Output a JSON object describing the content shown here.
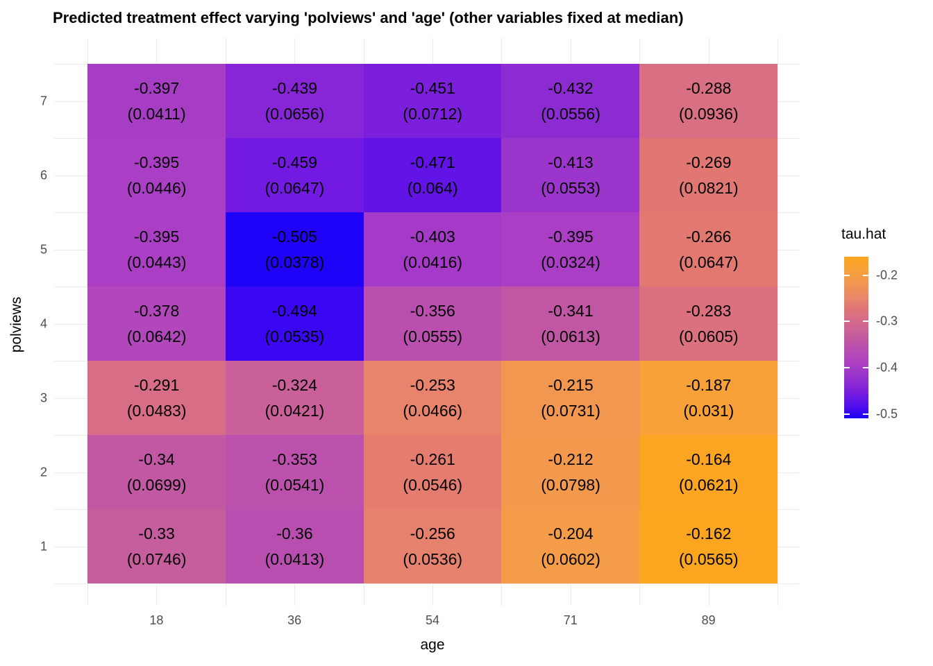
{
  "title": "Predicted treatment effect varying 'polviews' and 'age' (other variables fixed at median)",
  "chart_data": {
    "type": "heatmap",
    "title": "Predicted treatment effect varying 'polviews' and 'age' (other variables fixed at median)",
    "xlabel": "age",
    "ylabel": "polviews",
    "x_ticks": [
      "18",
      "36",
      "54",
      "71",
      "89"
    ],
    "y_ticks": [
      "7",
      "6",
      "5",
      "4",
      "3",
      "2",
      "1"
    ],
    "row_order_note": "rows listed top-to-bottom: polviews 7 down to 1; columns left-to-right: age 18,36,54,71,89",
    "values": [
      [
        -0.397,
        -0.439,
        -0.451,
        -0.432,
        -0.288
      ],
      [
        -0.395,
        -0.459,
        -0.471,
        -0.413,
        -0.269
      ],
      [
        -0.395,
        -0.505,
        -0.403,
        -0.395,
        -0.266
      ],
      [
        -0.378,
        -0.494,
        -0.356,
        -0.341,
        -0.283
      ],
      [
        -0.291,
        -0.324,
        -0.253,
        -0.215,
        -0.187
      ],
      [
        -0.34,
        -0.353,
        -0.261,
        -0.212,
        -0.164
      ],
      [
        -0.33,
        -0.36,
        -0.256,
        -0.204,
        -0.162
      ]
    ],
    "se_labels": [
      [
        "(0.0411)",
        "(0.0656)",
        "(0.0712)",
        "(0.0556)",
        "(0.0936)"
      ],
      [
        "(0.0446)",
        "(0.0647)",
        "(0.064)",
        "(0.0553)",
        "(0.0821)"
      ],
      [
        "(0.0443)",
        "(0.0378)",
        "(0.0416)",
        "(0.0324)",
        "(0.0647)"
      ],
      [
        "(0.0642)",
        "(0.0535)",
        "(0.0555)",
        "(0.0613)",
        "(0.0605)"
      ],
      [
        "(0.0483)",
        "(0.0421)",
        "(0.0466)",
        "(0.0731)",
        "(0.031)"
      ],
      [
        "(0.0699)",
        "(0.0541)",
        "(0.0546)",
        "(0.0798)",
        "(0.0621)"
      ],
      [
        "(0.0746)",
        "(0.0413)",
        "(0.0536)",
        "(0.0602)",
        "(0.0565)"
      ]
    ],
    "legend": {
      "title": "tau.hat",
      "tick_values": [
        -0.2,
        -0.3,
        -0.4,
        -0.5
      ],
      "tick_labels": [
        "-0.2",
        "-0.3",
        "-0.4",
        "-0.5"
      ],
      "bar_domain_min": -0.509,
      "bar_domain_max": -0.16
    },
    "colormap_stops": [
      [
        -0.509,
        "#1500fb"
      ],
      [
        -0.49,
        "#4309ef"
      ],
      [
        -0.47,
        "#6415e6"
      ],
      [
        -0.45,
        "#7d1fdd"
      ],
      [
        -0.43,
        "#8f2cd2"
      ],
      [
        -0.41,
        "#9e36ca"
      ],
      [
        -0.39,
        "#ae41c2"
      ],
      [
        -0.37,
        "#b549b7"
      ],
      [
        -0.35,
        "#bd52ab"
      ],
      [
        -0.33,
        "#c65d9c"
      ],
      [
        -0.31,
        "#cf6691"
      ],
      [
        -0.29,
        "#d86e85"
      ],
      [
        -0.27,
        "#e07673"
      ],
      [
        -0.25,
        "#e8866a"
      ],
      [
        -0.23,
        "#ee8f5a"
      ],
      [
        -0.21,
        "#f29a4d"
      ],
      [
        -0.19,
        "#f7a03b"
      ],
      [
        -0.17,
        "#fba428"
      ],
      [
        -0.16,
        "#fca61e"
      ]
    ],
    "grid_color": "#ebebeb",
    "tick_label_color": "#4d4d4d"
  }
}
